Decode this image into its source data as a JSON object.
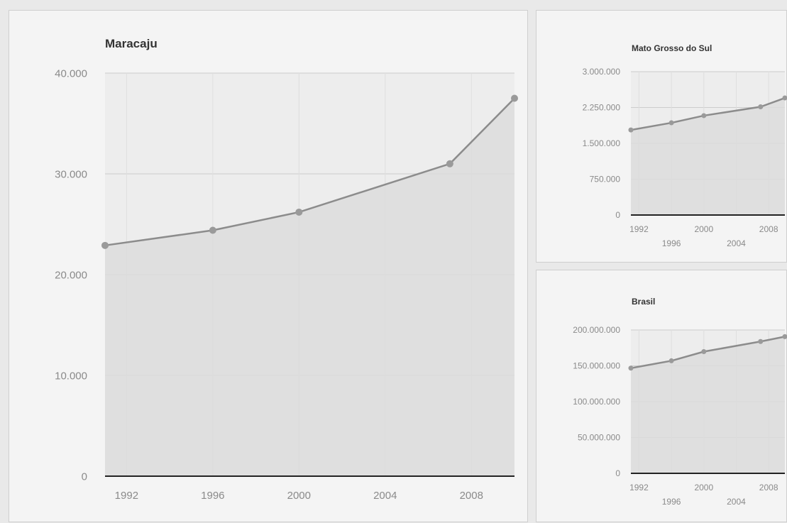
{
  "colors": {
    "line": "#8c8c8c",
    "area": "#dcdcdc",
    "point": "#9a9a9a",
    "grid": "#cccccc",
    "baseline": "#222222"
  },
  "chart_data": [
    {
      "id": "maracaju",
      "type": "area",
      "title": "Maracaju",
      "xlim": [
        1991,
        2010
      ],
      "ylim": [
        0,
        40000
      ],
      "x": [
        1991,
        1996,
        2000,
        2007,
        2010
      ],
      "series": [
        {
          "values": [
            22900,
            24400,
            26200,
            31000,
            37500
          ]
        }
      ],
      "yticks": [
        0,
        10000,
        20000,
        30000,
        40000
      ],
      "ytick_labels": [
        "0",
        "10.000",
        "20.000",
        "30.000",
        "40.000"
      ],
      "xticks": [
        1992,
        1996,
        2000,
        2004,
        2008
      ],
      "xtick_labels": [
        "1992",
        "1996",
        "2000",
        "2004",
        "2008"
      ],
      "grid": true
    },
    {
      "id": "mato-grosso-do-sul",
      "type": "area",
      "title": "Mato Grosso do Sul",
      "xlim": [
        1991,
        2010
      ],
      "ylim": [
        0,
        3000000
      ],
      "x": [
        1991,
        1996,
        2000,
        2007,
        2010
      ],
      "series": [
        {
          "values": [
            1780000,
            1930000,
            2080000,
            2265000,
            2450000
          ]
        }
      ],
      "yticks": [
        0,
        750000,
        1500000,
        2250000,
        3000000
      ],
      "ytick_labels": [
        "0",
        "750.000",
        "1.500.000",
        "2.250.000",
        "3.000.000"
      ],
      "xticks": [
        1992,
        1996,
        2000,
        2004,
        2008
      ],
      "xtick_labels": [
        "1992",
        "1996",
        "2000",
        "2004",
        "2008"
      ],
      "grid": true
    },
    {
      "id": "brasil",
      "type": "area",
      "title": "Brasil",
      "xlim": [
        1991,
        2010
      ],
      "ylim": [
        0,
        200000000
      ],
      "x": [
        1991,
        1996,
        2000,
        2007,
        2010
      ],
      "series": [
        {
          "values": [
            146800000,
            157000000,
            169800000,
            183900000,
            190700000
          ]
        }
      ],
      "yticks": [
        0,
        50000000,
        100000000,
        150000000,
        200000000
      ],
      "ytick_labels": [
        "0",
        "50.000.000",
        "100.000.000",
        "150.000.000",
        "200.000.000"
      ],
      "xticks": [
        1992,
        1996,
        2000,
        2004,
        2008
      ],
      "xtick_labels": [
        "1992",
        "1996",
        "2000",
        "2004",
        "2008"
      ],
      "grid": true
    }
  ]
}
